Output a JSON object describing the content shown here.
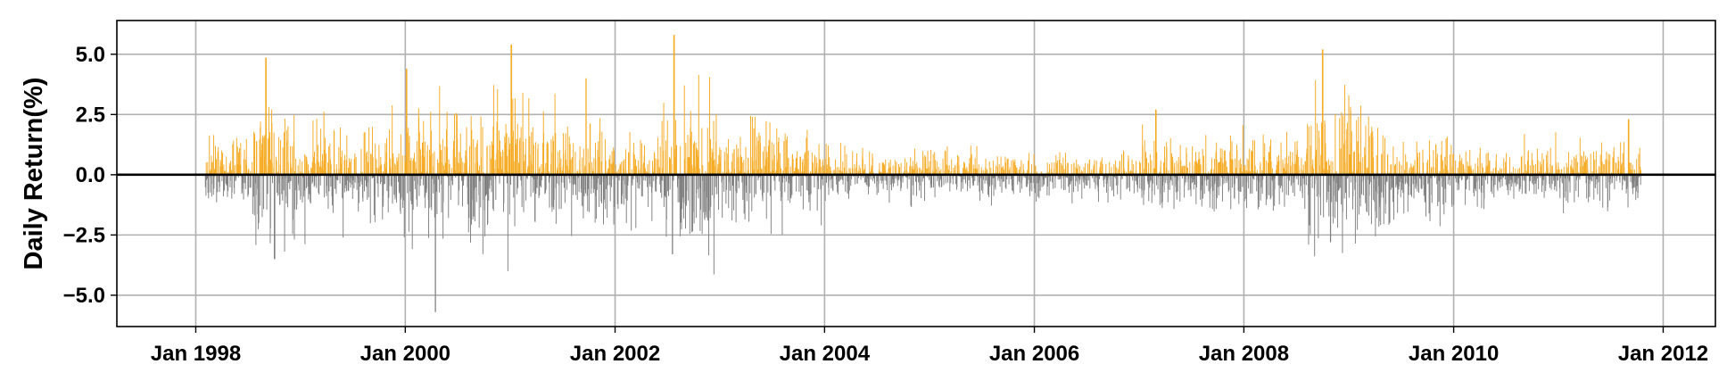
{
  "chart_data": {
    "type": "bar",
    "ylabel": "Daily Return(%)",
    "xlabel": "",
    "title": "",
    "x_range": [
      "1997-04-01",
      "2012-07-01"
    ],
    "ylim": [
      -6.3,
      6.4
    ],
    "grid": true,
    "zero_line": true,
    "colors": {
      "positive": "#F5AA22",
      "negative": "#7F7F7F",
      "zero_line": "#000000",
      "grid": "#B0B0B0"
    },
    "x_ticks": [
      {
        "date": "1998-01-01",
        "label": "Jan 1998"
      },
      {
        "date": "2000-01-01",
        "label": "Jan 2000"
      },
      {
        "date": "2002-01-01",
        "label": "Jan 2002"
      },
      {
        "date": "2004-01-01",
        "label": "Jan 2004"
      },
      {
        "date": "2006-01-01",
        "label": "Jan 2006"
      },
      {
        "date": "2008-01-01",
        "label": "Jan 2008"
      },
      {
        "date": "2010-01-01",
        "label": "Jan 2010"
      },
      {
        "date": "2012-01-01",
        "label": "Jan 2012"
      }
    ],
    "y_ticks": [
      {
        "value": 5.0,
        "label": "5.0"
      },
      {
        "value": 2.5,
        "label": "2.5"
      },
      {
        "value": 0.0,
        "label": "0.0"
      },
      {
        "value": -2.5,
        "label": "−2.5"
      },
      {
        "value": -5.0,
        "label": "−5.0"
      }
    ],
    "series_summary": {
      "date_range": [
        "1998-02-01",
        "2011-10-15"
      ],
      "notable_values": [
        {
          "date": "1998-09-01",
          "value": 4.85
        },
        {
          "date": "1998-10-01",
          "value": -3.5
        },
        {
          "date": "2000-01-04",
          "value": 4.4
        },
        {
          "date": "2000-04-14",
          "value": -5.7
        },
        {
          "date": "2001-01-03",
          "value": 5.4
        },
        {
          "date": "2001-09-21",
          "value": 4.0
        },
        {
          "date": "2002-07-24",
          "value": 5.8
        },
        {
          "date": "2002-07-19",
          "value": -3.3
        },
        {
          "date": "2003-12-20",
          "value": -2.1
        },
        {
          "date": "2007-02-27",
          "value": 2.7
        },
        {
          "date": "2008-09-30",
          "value": 5.2
        },
        {
          "date": "2008-10-27",
          "value": -2.8
        },
        {
          "date": "2011-09-01",
          "value": 2.3
        }
      ]
    }
  }
}
